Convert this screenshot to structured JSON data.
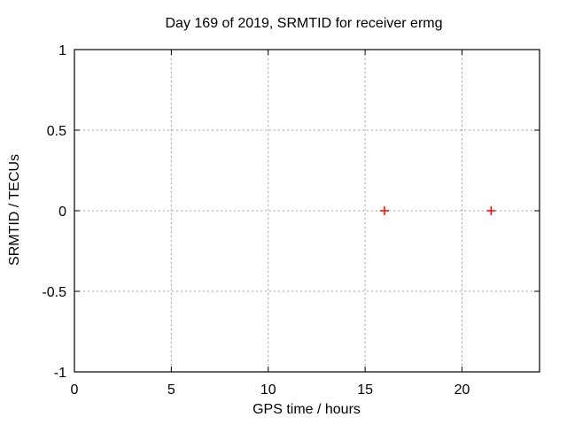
{
  "chart_data": {
    "type": "scatter",
    "title": "Day 169 of 2019, SRMTID for receiver ermg",
    "xlabel": "GPS time / hours",
    "ylabel": "SRMTID / TECUs",
    "xlim": [
      0,
      24
    ],
    "ylim": [
      -1,
      1
    ],
    "x_ticks": [
      0,
      5,
      10,
      15,
      20
    ],
    "y_ticks": [
      -1,
      -0.5,
      0,
      0.5,
      1
    ],
    "grid": true,
    "grid_style": "dashed",
    "legend": "none",
    "series": [
      {
        "name": "SRMTID",
        "marker": "plus",
        "color": "#ff0000",
        "points": [
          {
            "x": 16.0,
            "y": 0.0
          },
          {
            "x": 21.5,
            "y": 0.0
          }
        ]
      }
    ],
    "colors": {
      "background": "#ffffff",
      "border": "#000000",
      "grid": "#a0a0a0",
      "text": "#000000",
      "marker": "#ff0000"
    }
  }
}
